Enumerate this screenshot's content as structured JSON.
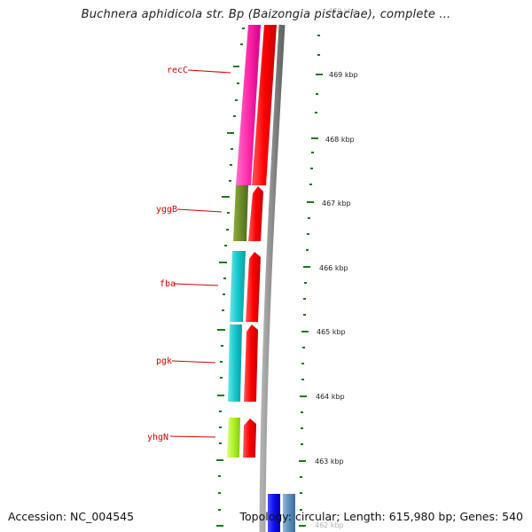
{
  "title": "Buchnera aphidicola str. Bp (Baizongia pistaciae), complete ...",
  "footer": {
    "accession": "Accession: NC_004545",
    "summary": "Topology: circular; Length: 615,980 bp; Genes: 540"
  },
  "colors": {
    "tick": "#1a7a1a",
    "gene_label": "#d40000",
    "backbone": "#8c8c8c",
    "strand_red": "#ff0000"
  },
  "genes": [
    {
      "name": "recC",
      "color": "#ff2aa8"
    },
    {
      "name": "yggB",
      "color": "#6b8c2a"
    },
    {
      "name": "fba",
      "color": "#14c8cc"
    },
    {
      "name": "pgk",
      "color": "#14c8cc"
    },
    {
      "name": "yhgN",
      "color": "#aef22a"
    }
  ],
  "kbp_labels": [
    "470 kbp",
    "469 kbp",
    "468 kbp",
    "467 kbp",
    "466 kbp",
    "465 kbp",
    "464 kbp",
    "463 kbp",
    "462 kbp"
  ]
}
